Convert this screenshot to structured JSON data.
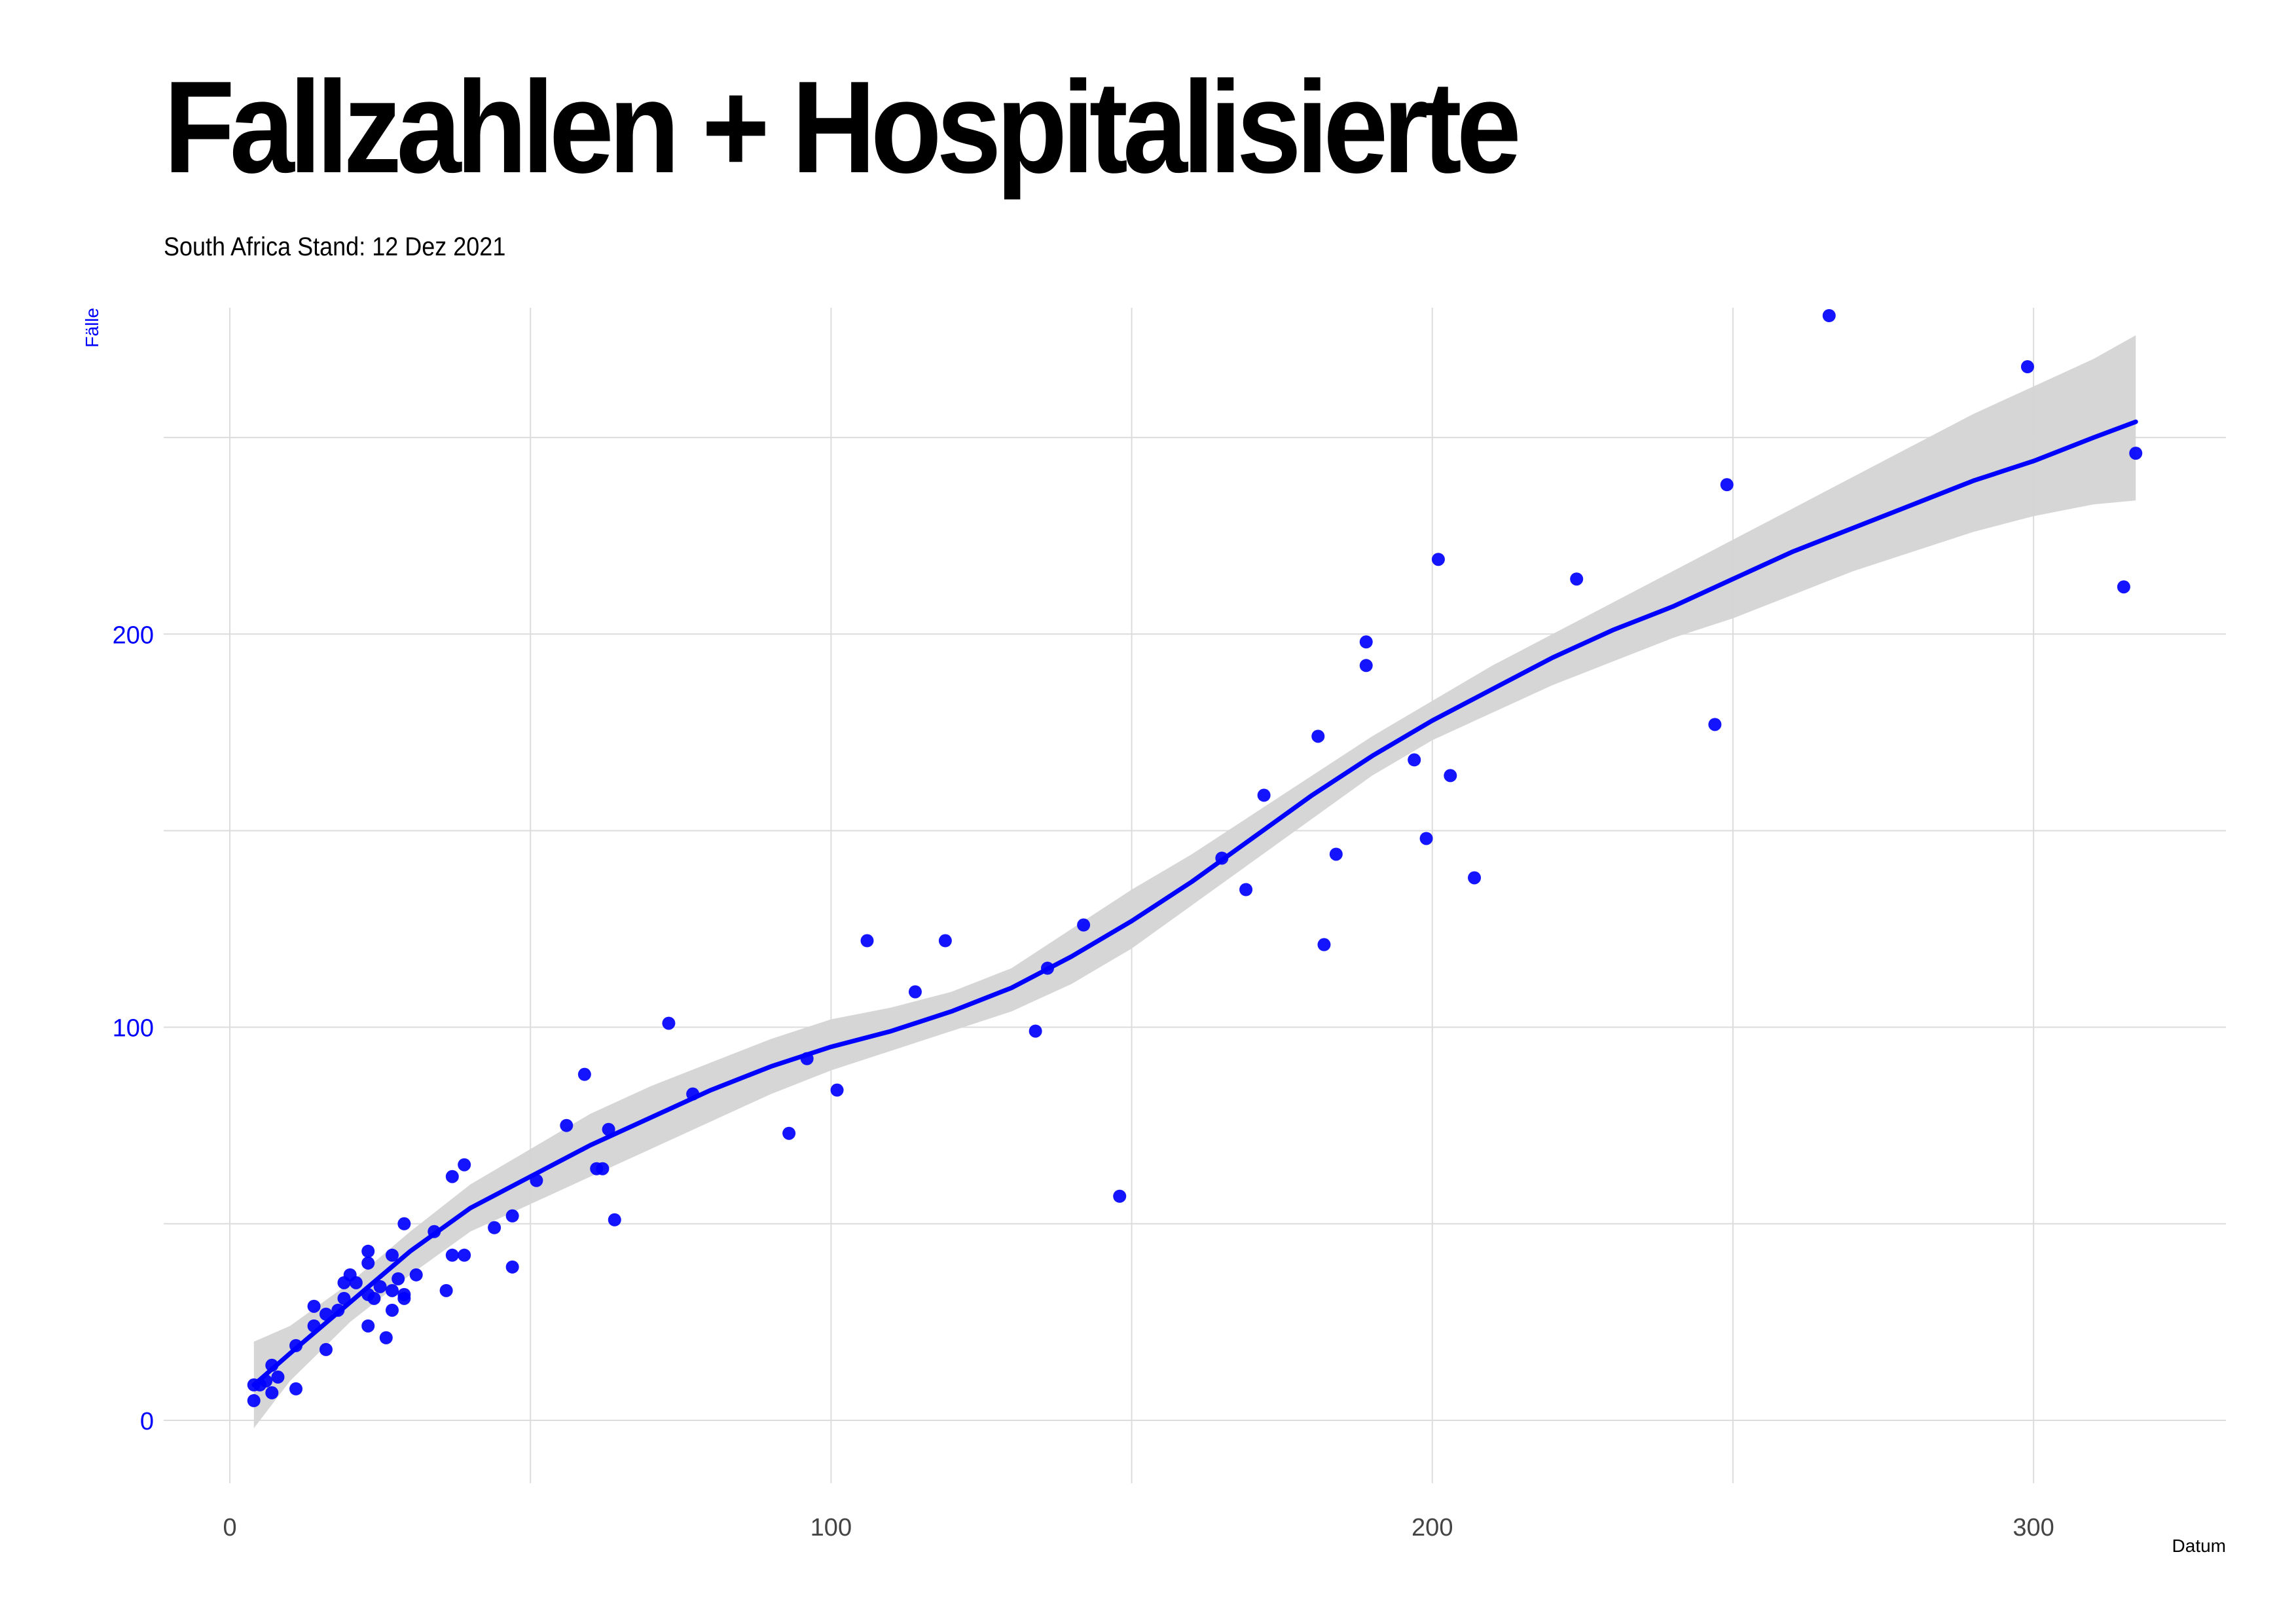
{
  "title": "Fallzahlen + Hospitalisierte",
  "subtitle": "South Africa  Stand: 12 Dez 2021",
  "colors": {
    "points": "#0000ff",
    "line": "#0000ff",
    "band": "#d4d4d4",
    "grid": "#dcdcdc",
    "y_axis_text": "#0000ff",
    "x_axis_text": "#444444"
  },
  "chart_data": {
    "type": "scatter",
    "xlabel": "Datum",
    "ylabel": "Fälle",
    "xlim": [
      -11,
      332
    ],
    "ylim": [
      -16,
      283
    ],
    "grid": true,
    "x_ticks": [
      0,
      100,
      200,
      300
    ],
    "y_ticks": [
      0,
      100,
      200
    ],
    "x_tick_labels": [
      "0",
      "100",
      "200",
      "300"
    ],
    "y_tick_labels": [
      "0",
      "100",
      "200"
    ],
    "points": [
      {
        "x": 4,
        "y": 9
      },
      {
        "x": 5,
        "y": 9
      },
      {
        "x": 6,
        "y": 10
      },
      {
        "x": 7,
        "y": 7
      },
      {
        "x": 7,
        "y": 14
      },
      {
        "x": 8,
        "y": 11
      },
      {
        "x": 4,
        "y": 5
      },
      {
        "x": 11,
        "y": 19
      },
      {
        "x": 11,
        "y": 8
      },
      {
        "x": 14,
        "y": 24
      },
      {
        "x": 14,
        "y": 29
      },
      {
        "x": 16,
        "y": 18
      },
      {
        "x": 16,
        "y": 27
      },
      {
        "x": 18,
        "y": 28
      },
      {
        "x": 19,
        "y": 35
      },
      {
        "x": 19,
        "y": 31
      },
      {
        "x": 20,
        "y": 37
      },
      {
        "x": 21,
        "y": 35
      },
      {
        "x": 23,
        "y": 24
      },
      {
        "x": 23,
        "y": 32
      },
      {
        "x": 23,
        "y": 40
      },
      {
        "x": 24,
        "y": 31
      },
      {
        "x": 25,
        "y": 34
      },
      {
        "x": 26,
        "y": 21
      },
      {
        "x": 27,
        "y": 28
      },
      {
        "x": 27,
        "y": 33
      },
      {
        "x": 27,
        "y": 42
      },
      {
        "x": 28,
        "y": 36
      },
      {
        "x": 29,
        "y": 32
      },
      {
        "x": 29,
        "y": 31
      },
      {
        "x": 23,
        "y": 43
      },
      {
        "x": 29,
        "y": 50
      },
      {
        "x": 31,
        "y": 37
      },
      {
        "x": 34,
        "y": 48
      },
      {
        "x": 36,
        "y": 33
      },
      {
        "x": 37,
        "y": 62
      },
      {
        "x": 37,
        "y": 42
      },
      {
        "x": 39,
        "y": 42
      },
      {
        "x": 39,
        "y": 65
      },
      {
        "x": 44,
        "y": 49
      },
      {
        "x": 47,
        "y": 39
      },
      {
        "x": 47,
        "y": 52
      },
      {
        "x": 51,
        "y": 61
      },
      {
        "x": 56,
        "y": 75
      },
      {
        "x": 59,
        "y": 88
      },
      {
        "x": 61,
        "y": 64
      },
      {
        "x": 62,
        "y": 64
      },
      {
        "x": 63,
        "y": 74
      },
      {
        "x": 64,
        "y": 51
      },
      {
        "x": 73,
        "y": 101
      },
      {
        "x": 77,
        "y": 83
      },
      {
        "x": 93,
        "y": 73
      },
      {
        "x": 96,
        "y": 92
      },
      {
        "x": 101,
        "y": 84
      },
      {
        "x": 106,
        "y": 122
      },
      {
        "x": 114,
        "y": 109
      },
      {
        "x": 119,
        "y": 122
      },
      {
        "x": 134,
        "y": 99
      },
      {
        "x": 136,
        "y": 115
      },
      {
        "x": 142,
        "y": 126
      },
      {
        "x": 148,
        "y": 57
      },
      {
        "x": 165,
        "y": 143
      },
      {
        "x": 169,
        "y": 135
      },
      {
        "x": 172,
        "y": 159
      },
      {
        "x": 181,
        "y": 174
      },
      {
        "x": 182,
        "y": 121
      },
      {
        "x": 184,
        "y": 144
      },
      {
        "x": 189,
        "y": 198
      },
      {
        "x": 189,
        "y": 192
      },
      {
        "x": 197,
        "y": 168
      },
      {
        "x": 199,
        "y": 148
      },
      {
        "x": 201,
        "y": 219
      },
      {
        "x": 203,
        "y": 164
      },
      {
        "x": 207,
        "y": 138
      },
      {
        "x": 224,
        "y": 214
      },
      {
        "x": 247,
        "y": 177
      },
      {
        "x": 249,
        "y": 238
      },
      {
        "x": 266,
        "y": 281
      },
      {
        "x": 299,
        "y": 268
      },
      {
        "x": 315,
        "y": 212
      },
      {
        "x": 317,
        "y": 246
      }
    ],
    "trend": {
      "x": [
        4,
        10,
        20,
        30,
        40,
        50,
        60,
        70,
        80,
        90,
        100,
        110,
        120,
        130,
        140,
        150,
        160,
        170,
        180,
        190,
        200,
        210,
        220,
        230,
        240,
        250,
        260,
        270,
        280,
        290,
        300,
        310,
        317
      ],
      "y": [
        9,
        17,
        30,
        43,
        54,
        62,
        70,
        77,
        84,
        90,
        95,
        99,
        104,
        110,
        118,
        127,
        137,
        148,
        159,
        169,
        178,
        186,
        194,
        201,
        207,
        214,
        221,
        227,
        233,
        239,
        244,
        250,
        254
      ],
      "lower": [
        -2,
        10,
        25,
        37,
        48,
        55,
        62,
        69,
        76,
        83,
        89,
        94,
        99,
        104,
        111,
        120,
        131,
        142,
        153,
        164,
        173,
        180,
        187,
        193,
        199,
        204,
        210,
        216,
        221,
        226,
        230,
        233,
        234
      ],
      "upper": [
        20,
        24,
        35,
        48,
        60,
        69,
        78,
        85,
        91,
        97,
        102,
        105,
        109,
        115,
        125,
        135,
        144,
        154,
        164,
        174,
        183,
        192,
        200,
        208,
        216,
        224,
        232,
        240,
        248,
        256,
        263,
        270,
        276
      ]
    }
  }
}
